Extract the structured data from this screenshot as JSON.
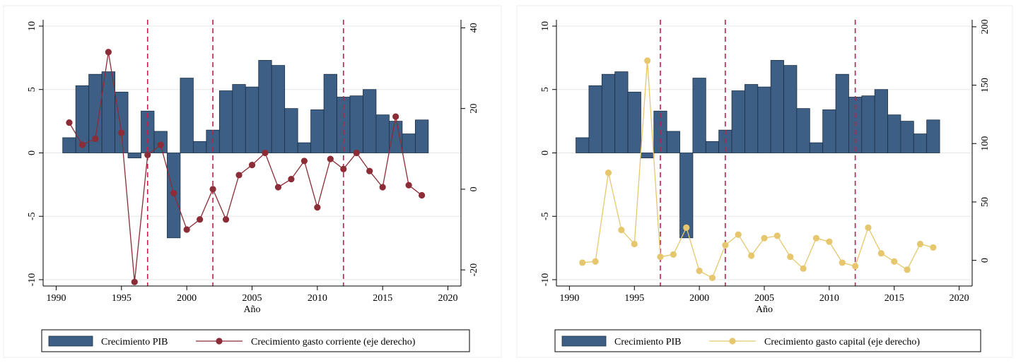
{
  "colors": {
    "bar": "#3d5f86",
    "bar_edge": "#1b2f45",
    "line_left": "#8b2c37",
    "line_right": "#e6c76d",
    "ref_line": "#c41e4a",
    "grid": "#e6e6e6"
  },
  "chart_data": [
    {
      "type": "bar",
      "title": "",
      "xlabel": "Año",
      "ylabel": "",
      "xlim": [
        1989,
        2021
      ],
      "ylim": [
        -10.5,
        10.5
      ],
      "y2lim": [
        -24,
        42
      ],
      "xticks": [
        1990,
        1995,
        2000,
        2005,
        2010,
        2015,
        2020
      ],
      "yticks": [
        -10,
        -5,
        0,
        5,
        10
      ],
      "y2ticks": [
        -20,
        0,
        20,
        40
      ],
      "reference_lines_x": [
        1997,
        2002,
        2012
      ],
      "grid": true,
      "legend_position": "bottom",
      "series": [
        {
          "name": "Crecimiento PIB",
          "type": "bar",
          "axis": "left",
          "x": [
            1991,
            1992,
            1993,
            1994,
            1995,
            1996,
            1997,
            1998,
            1999,
            2000,
            2001,
            2002,
            2003,
            2004,
            2005,
            2006,
            2007,
            2008,
            2009,
            2010,
            2011,
            2012,
            2013,
            2014,
            2015,
            2016,
            2017,
            2018
          ],
          "values": [
            1.2,
            5.3,
            6.2,
            6.4,
            4.8,
            -0.4,
            3.3,
            1.7,
            -6.7,
            5.9,
            0.9,
            1.8,
            4.9,
            5.4,
            5.2,
            7.3,
            6.9,
            3.5,
            0.8,
            3.4,
            6.2,
            4.4,
            4.5,
            5.0,
            3.0,
            2.5,
            1.5,
            2.6
          ]
        },
        {
          "name": "Crecimiento gasto corriente (eje derecho)",
          "type": "line",
          "axis": "right",
          "x": [
            1991,
            1992,
            1993,
            1994,
            1995,
            1996,
            1997,
            1998,
            1999,
            2000,
            2001,
            2002,
            2003,
            2004,
            2005,
            2006,
            2007,
            2008,
            2009,
            2010,
            2011,
            2012,
            2013,
            2014,
            2015,
            2016,
            2017,
            2018
          ],
          "values": [
            16.5,
            11,
            12.5,
            34,
            14,
            -23,
            8.5,
            11,
            -1,
            -10,
            -7.5,
            0,
            -7.5,
            3.5,
            6,
            9,
            0.5,
            2.5,
            7,
            -4.5,
            7.5,
            5,
            9,
            4.5,
            0.5,
            18,
            1,
            -1.5
          ]
        }
      ]
    },
    {
      "type": "bar",
      "title": "",
      "xlabel": "Año",
      "ylabel": "",
      "xlim": [
        1989,
        2021
      ],
      "ylim": [
        -10.5,
        10.5
      ],
      "y2lim": [
        -22,
        206
      ],
      "xticks": [
        1990,
        1995,
        2000,
        2005,
        2010,
        2015,
        2020
      ],
      "yticks": [
        -10,
        -5,
        0,
        5,
        10
      ],
      "y2ticks": [
        0,
        50,
        100,
        150,
        200
      ],
      "reference_lines_x": [
        1997,
        2002,
        2012
      ],
      "grid": true,
      "legend_position": "bottom",
      "series": [
        {
          "name": "Crecimiento PIB",
          "type": "bar",
          "axis": "left",
          "x": [
            1991,
            1992,
            1993,
            1994,
            1995,
            1996,
            1997,
            1998,
            1999,
            2000,
            2001,
            2002,
            2003,
            2004,
            2005,
            2006,
            2007,
            2008,
            2009,
            2010,
            2011,
            2012,
            2013,
            2014,
            2015,
            2016,
            2017,
            2018
          ],
          "values": [
            1.2,
            5.3,
            6.2,
            6.4,
            4.8,
            -0.4,
            3.3,
            1.7,
            -6.7,
            5.9,
            0.9,
            1.8,
            4.9,
            5.4,
            5.2,
            7.3,
            6.9,
            3.5,
            0.8,
            3.4,
            6.2,
            4.4,
            4.5,
            5.0,
            3.0,
            2.5,
            1.5,
            2.6
          ]
        },
        {
          "name": "Crecimiento gasto capital (eje derecho)",
          "type": "line",
          "axis": "right",
          "x": [
            1991,
            1992,
            1993,
            1994,
            1995,
            1996,
            1997,
            1998,
            1999,
            2000,
            2001,
            2002,
            2003,
            2004,
            2005,
            2006,
            2007,
            2008,
            2009,
            2010,
            2011,
            2012,
            2013,
            2014,
            2015,
            2016,
            2017,
            2018
          ],
          "values": [
            -2,
            -1,
            75,
            26,
            14,
            171,
            3,
            5,
            28,
            -9,
            -15,
            13,
            22,
            4,
            19,
            21,
            3,
            -7,
            19,
            16,
            -2,
            -5,
            28,
            6,
            -1,
            -8,
            14,
            11
          ]
        }
      ]
    }
  ]
}
